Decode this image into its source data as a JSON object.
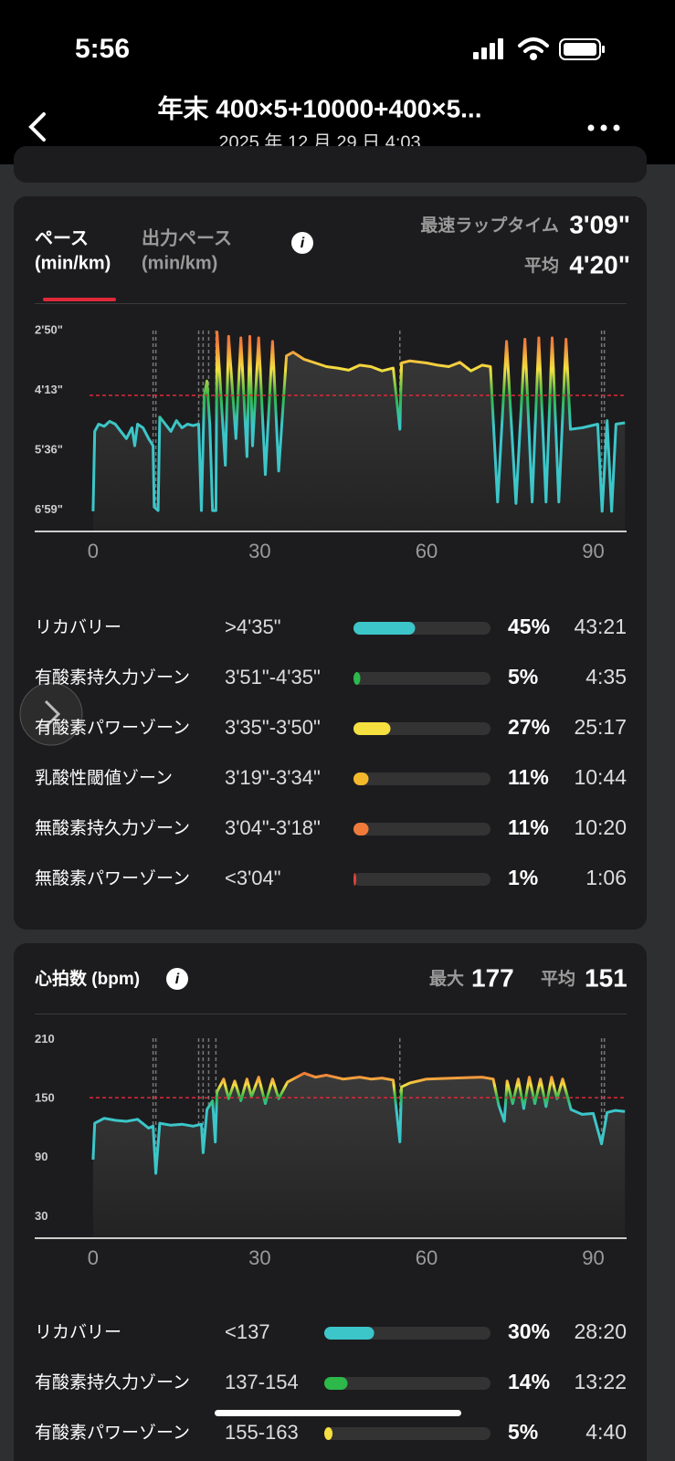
{
  "status": {
    "time": "5:56"
  },
  "header": {
    "title": "年末 400×5+10000+400×5...",
    "subtitle": "2025 年 12 月 29 日 4:03"
  },
  "pace_card": {
    "tabs": [
      {
        "name": "ペース",
        "unit": "(min/km)"
      },
      {
        "name": "出力ペース",
        "unit": "(min/km)"
      }
    ],
    "fastest_label": "最速ラップタイム",
    "fastest": "3'09\"",
    "avg_label": "平均",
    "avg": {
      "value": 260,
      "label": "4'20\""
    },
    "chart": {
      "type": "line",
      "invert": true,
      "xlim": [
        -10.5,
        96
      ],
      "xticks": [
        0,
        30,
        60,
        90
      ],
      "ylim": [
        142,
        449
      ],
      "yticks": [
        {
          "value": 170,
          "label": "2'50\""
        },
        {
          "value": 253,
          "label": "4'13\""
        },
        {
          "value": 336,
          "label": "5'36\""
        },
        {
          "value": 419,
          "label": "6'59\""
        }
      ],
      "laps": [
        10.8,
        11.3,
        19,
        19.8,
        20.8,
        22.1,
        55.2,
        91.5,
        92
      ],
      "line_colors": [
        "#f07a3a",
        "#f5e040",
        "#2db84a",
        "#3cc6c9"
      ],
      "x": [
        0,
        0.3,
        1,
        2,
        3,
        4,
        5,
        6,
        7,
        7.5,
        8,
        9,
        10,
        10.8,
        11,
        11.7,
        12,
        13,
        14,
        15,
        16,
        17,
        18,
        19,
        19.5,
        20,
        20.5,
        21,
        21.5,
        22.1,
        22.3,
        23.8,
        24.4,
        25.7,
        26.6,
        27.7,
        28.2,
        28.7,
        29.8,
        31,
        32.3,
        33.4,
        34.8,
        36,
        38,
        40,
        42,
        44,
        46,
        48,
        50,
        52,
        54,
        55.2,
        55.5,
        57,
        60,
        62,
        64,
        66,
        68,
        70,
        71.5,
        72.8,
        74.4,
        76.1,
        77.7,
        79,
        80.2,
        81.5,
        82.6,
        83.8,
        85.1,
        85.9,
        88,
        90.8,
        91.6,
        92.5,
        93.3,
        94.1,
        95.7
      ],
      "values": [
        421,
        310,
        300,
        303,
        296,
        300,
        310,
        320,
        305,
        330,
        300,
        305,
        320,
        330,
        415,
        420,
        290,
        300,
        310,
        295,
        305,
        300,
        302,
        300,
        420,
        260,
        240,
        300,
        420,
        420,
        172,
        357,
        178,
        320,
        180,
        345,
        178,
        330,
        180,
        370,
        185,
        365,
        205,
        200,
        210,
        215,
        220,
        222,
        225,
        218,
        220,
        226,
        222,
        307,
        215,
        212,
        215,
        218,
        220,
        214,
        226,
        218,
        220,
        408,
        185,
        410,
        182,
        408,
        180,
        408,
        180,
        408,
        182,
        307,
        305,
        300,
        421,
        295,
        421,
        300,
        298
      ]
    },
    "zones": [
      {
        "name": "リカバリー",
        "range": ">4'35\"",
        "percent": 45,
        "percent_label": "45%",
        "time": "43:21",
        "color": "#3cc6c9"
      },
      {
        "name": "有酸素持久力ゾーン",
        "range": "3'51\"-4'35\"",
        "percent": 5,
        "percent_label": "5%",
        "time": "4:35",
        "color": "#2db84a"
      },
      {
        "name": "有酸素パワーゾーン",
        "range": "3'35\"-3'50\"",
        "percent": 27,
        "percent_label": "27%",
        "time": "25:17",
        "color": "#f5e040"
      },
      {
        "name": "乳酸性閾値ゾーン",
        "range": "3'19\"-3'34\"",
        "percent": 11,
        "percent_label": "11%",
        "time": "10:44",
        "color": "#f5b82a"
      },
      {
        "name": "無酸素持久力ゾーン",
        "range": "3'04\"-3'18\"",
        "percent": 11,
        "percent_label": "11%",
        "time": "10:20",
        "color": "#f07a3a"
      },
      {
        "name": "無酸素パワーゾーン",
        "range": "<3'04\"",
        "percent": 1,
        "percent_label": "1%",
        "time": "1:06",
        "color": "#e0443a"
      }
    ]
  },
  "hr_card": {
    "title": "心拍数 (bpm)",
    "max_label": "最大",
    "max": "177",
    "avg_label": "平均",
    "avg": 151,
    "chart": {
      "type": "line",
      "invert": false,
      "xlim": [
        -10.5,
        96
      ],
      "xticks": [
        0,
        30,
        60,
        90
      ],
      "ylim": [
        8,
        232
      ],
      "yticks": [
        210,
        150,
        90,
        30
      ],
      "laps": [
        10.8,
        11.3,
        19,
        19.8,
        20.8,
        22.1,
        55.2,
        91.5,
        92
      ],
      "line_colors": [
        "#f07a3a",
        "#f5e040",
        "#2db84a",
        "#3cc6c9"
      ],
      "x": [
        0,
        0.3,
        2,
        4,
        6,
        8,
        10,
        10.8,
        11.3,
        12,
        14,
        16,
        18,
        19.5,
        19.8,
        20.5,
        21.5,
        22,
        22.3,
        23.5,
        24.4,
        25.5,
        26.6,
        27.7,
        28.5,
        29.8,
        31,
        32.3,
        33.4,
        35,
        38,
        40,
        42,
        45,
        48,
        50,
        52,
        54,
        55.2,
        55.5,
        57,
        60,
        65,
        70,
        72,
        73,
        74,
        74.5,
        75.5,
        76.5,
        77.5,
        78.5,
        79.5,
        80.5,
        81.5,
        82.5,
        83.5,
        84.5,
        86,
        88,
        90,
        91.5,
        92.5,
        94,
        95.7
      ],
      "values": [
        88,
        125,
        130,
        128,
        127,
        129,
        120,
        122,
        74,
        125,
        123,
        124,
        122,
        124,
        95,
        139,
        148,
        106,
        157,
        170,
        150,
        168,
        148,
        170,
        152,
        172,
        145,
        170,
        150,
        167,
        176,
        172,
        174,
        170,
        172,
        170,
        171,
        169,
        106,
        162,
        166,
        170,
        171,
        172,
        170,
        143,
        127,
        168,
        145,
        170,
        140,
        172,
        145,
        170,
        142,
        172,
        150,
        170,
        139,
        134,
        135,
        104,
        136,
        138,
        137
      ]
    },
    "zones": [
      {
        "name": "リカバリー",
        "range": "<137",
        "percent": 30,
        "percent_label": "30%",
        "time": "28:20",
        "color": "#3cc6c9"
      },
      {
        "name": "有酸素持久力ゾーン",
        "range": "137-154",
        "percent": 14,
        "percent_label": "14%",
        "time": "13:22",
        "color": "#2db84a"
      },
      {
        "name": "有酸素パワーゾーン",
        "range": "155-163",
        "percent": 5,
        "percent_label": "5%",
        "time": "4:40",
        "color": "#f5e040"
      }
    ]
  }
}
